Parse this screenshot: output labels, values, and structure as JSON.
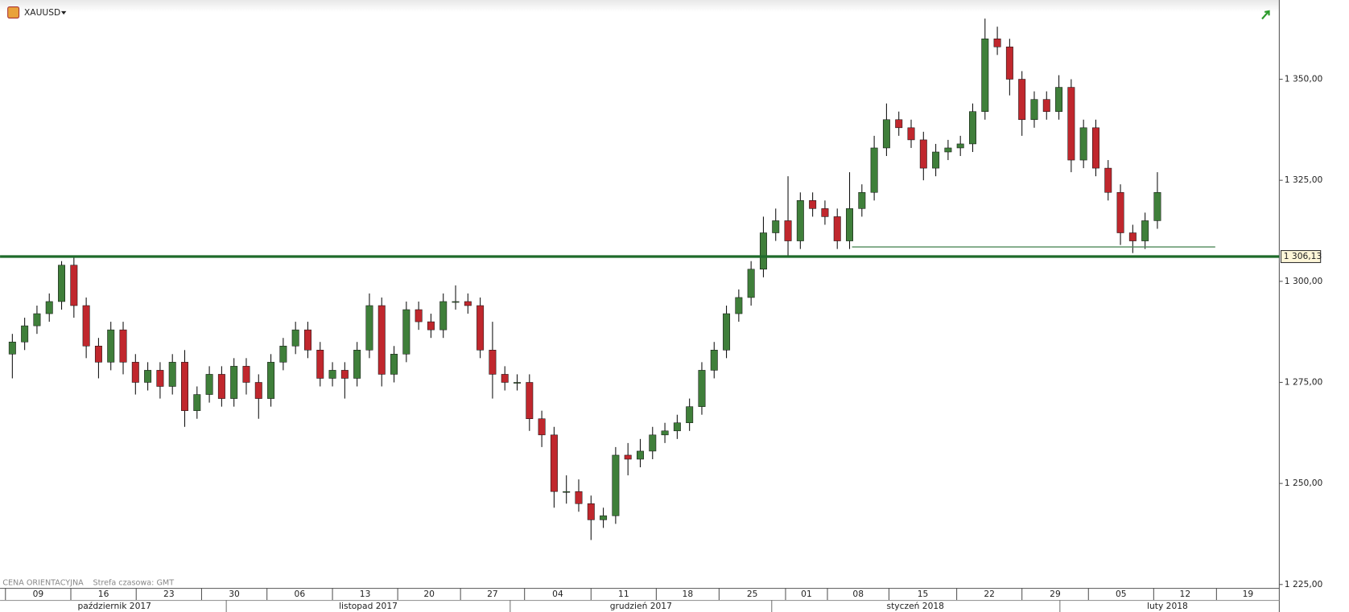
{
  "chart_data": {
    "type": "candlestick",
    "symbol": "XAUUSD",
    "footer_left": "CENA ORIENTACYJNA",
    "footer_right": "Strefa czasowa: GMT",
    "up_color": "#3f7f3a",
    "down_color": "#c0272d",
    "wick_color": "#111111",
    "x": [
      0,
      1,
      2,
      3,
      4,
      5,
      6,
      7,
      8,
      9,
      10,
      11,
      12,
      13,
      14,
      15,
      16,
      17,
      18,
      19,
      20,
      21,
      22,
      23,
      24,
      25,
      26,
      27,
      28,
      29,
      30,
      31,
      32,
      33,
      34,
      35,
      36,
      37,
      38,
      39,
      40,
      41,
      42,
      43,
      44,
      45,
      46,
      47,
      48,
      49,
      50,
      51,
      52,
      53,
      54,
      55,
      56,
      57,
      58,
      59,
      60,
      61,
      62,
      63,
      64,
      65,
      66,
      67,
      68,
      69,
      70,
      71,
      72,
      73,
      74,
      75,
      76,
      77,
      78,
      79,
      80,
      81,
      82,
      83,
      84,
      85,
      86,
      87,
      88,
      89,
      90,
      91,
      92,
      93
    ],
    "open": [
      1282,
      1285,
      1289,
      1292,
      1295,
      1304,
      1294,
      1284,
      1280,
      1288,
      1280,
      1275,
      1278,
      1274,
      1280,
      1268,
      1272,
      1277,
      1271,
      1279,
      1275,
      1271,
      1280,
      1284,
      1288,
      1283,
      1276,
      1278,
      1276,
      1283,
      1294,
      1277,
      1282,
      1293,
      1290,
      1288,
      1295,
      1295,
      1294,
      1283,
      1277,
      1275,
      1275,
      1266,
      1262,
      1248,
      1248,
      1245,
      1241,
      1242,
      1257,
      1256,
      1258,
      1262,
      1263,
      1265,
      1269,
      1278,
      1283,
      1292,
      1296,
      1303,
      1312,
      1315,
      1310,
      1320,
      1318,
      1316,
      1310,
      1318,
      1322,
      1333,
      1340,
      1338,
      1335,
      1328,
      1332,
      1333,
      1334,
      1342,
      1360,
      1358,
      1350,
      1340,
      1345,
      1342,
      1348,
      1330,
      1338,
      1328,
      1322,
      1312,
      1310,
      1315
    ],
    "high": [
      1287,
      1291,
      1294,
      1297,
      1305,
      1306,
      1296,
      1286,
      1290,
      1290,
      1282,
      1280,
      1280,
      1282,
      1283,
      1274,
      1279,
      1279,
      1281,
      1281,
      1277,
      1282,
      1286,
      1290,
      1290,
      1285,
      1280,
      1280,
      1285,
      1297,
      1296,
      1284,
      1295,
      1295,
      1292,
      1297,
      1299,
      1297,
      1296,
      1290,
      1279,
      1277,
      1277,
      1268,
      1264,
      1252,
      1251,
      1247,
      1244,
      1259,
      1260,
      1261,
      1264,
      1265,
      1267,
      1271,
      1280,
      1285,
      1294,
      1298,
      1305,
      1316,
      1318,
      1326,
      1322,
      1322,
      1320,
      1318,
      1327,
      1324,
      1336,
      1344,
      1342,
      1340,
      1337,
      1334,
      1335,
      1336,
      1344,
      1365,
      1363,
      1360,
      1352,
      1347,
      1347,
      1351,
      1350,
      1340,
      1340,
      1330,
      1324,
      1314,
      1317,
      1327
    ],
    "low": [
      1276,
      1283,
      1287,
      1290,
      1293,
      1291,
      1281,
      1276,
      1278,
      1277,
      1272,
      1273,
      1271,
      1272,
      1264,
      1266,
      1270,
      1269,
      1269,
      1272,
      1266,
      1269,
      1278,
      1282,
      1281,
      1274,
      1274,
      1271,
      1274,
      1281,
      1274,
      1275,
      1280,
      1288,
      1286,
      1286,
      1293,
      1292,
      1281,
      1271,
      1273,
      1273,
      1263,
      1259,
      1244,
      1245,
      1243,
      1236,
      1239,
      1240,
      1252,
      1254,
      1256,
      1260,
      1261,
      1263,
      1267,
      1276,
      1281,
      1290,
      1294,
      1301,
      1310,
      1306,
      1308,
      1316,
      1314,
      1308,
      1308,
      1316,
      1320,
      1331,
      1336,
      1333,
      1325,
      1326,
      1330,
      1331,
      1332,
      1340,
      1356,
      1346,
      1336,
      1338,
      1340,
      1340,
      1327,
      1328,
      1326,
      1320,
      1309,
      1307,
      1308,
      1313
    ],
    "close": [
      1285,
      1289,
      1292,
      1295,
      1304,
      1294,
      1284,
      1280,
      1288,
      1280,
      1275,
      1278,
      1274,
      1280,
      1268,
      1272,
      1277,
      1271,
      1279,
      1275,
      1271,
      1280,
      1284,
      1288,
      1283,
      1276,
      1278,
      1276,
      1283,
      1294,
      1277,
      1282,
      1293,
      1290,
      1288,
      1295,
      1295,
      1294,
      1283,
      1277,
      1275,
      1275,
      1266,
      1262,
      1248,
      1248,
      1245,
      1241,
      1242,
      1257,
      1256,
      1258,
      1262,
      1263,
      1265,
      1269,
      1278,
      1283,
      1292,
      1296,
      1303,
      1312,
      1315,
      1310,
      1320,
      1318,
      1316,
      1310,
      1318,
      1322,
      1333,
      1340,
      1338,
      1335,
      1328,
      1332,
      1333,
      1334,
      1342,
      1360,
      1358,
      1350,
      1340,
      1345,
      1342,
      1348,
      1330,
      1338,
      1328,
      1322,
      1312,
      1310,
      1315,
      1322
    ],
    "xlim": [
      -1,
      102.9
    ],
    "xticks": [
      {
        "value": -0.56,
        "label": "09"
      },
      {
        "value": 4.75,
        "label": "16"
      },
      {
        "value": 10.06,
        "label": "23"
      },
      {
        "value": 15.37,
        "label": "30"
      },
      {
        "value": 20.68,
        "label": "06"
      },
      {
        "value": 26,
        "label": "13"
      },
      {
        "value": 31.3,
        "label": "20"
      },
      {
        "value": 36.4,
        "label": "27"
      },
      {
        "value": 41.6,
        "label": "04"
      },
      {
        "value": 47,
        "label": "11"
      },
      {
        "value": 52.3,
        "label": "18"
      },
      {
        "value": 57.4,
        "label": "25"
      },
      {
        "value": 62.8,
        "label": "01"
      },
      {
        "value": 66.2,
        "label": "08"
      },
      {
        "value": 71.2,
        "label": "15"
      },
      {
        "value": 76.7,
        "label": "22"
      },
      {
        "value": 82,
        "label": "29"
      },
      {
        "value": 87.4,
        "label": "05"
      },
      {
        "value": 92.7,
        "label": "12"
      },
      {
        "value": 97.8,
        "label": "19"
      }
    ],
    "months": [
      "październik 2017",
      "listopad 2017",
      "grudzień 2017",
      "styczeń 2018",
      "luty 2018"
    ],
    "ylim": [
      1224.15,
      1369.6
    ],
    "yticks": [
      {
        "value": 1225,
        "label": "1 225,00"
      },
      {
        "value": 1250,
        "label": "1 250,00"
      },
      {
        "value": 1275,
        "label": "1 275,00"
      },
      {
        "value": 1300,
        "label": "1 300,00"
      },
      {
        "value": 1325,
        "label": "1 325,00"
      },
      {
        "value": 1350,
        "label": "1 350,00"
      }
    ],
    "levels": [
      {
        "value": 1306.13,
        "label": "1 306,13",
        "color": "#1e6b2a"
      },
      {
        "value": 1308.5,
        "x": [
          68.2,
          97.7
        ],
        "color": "#4f8a5a"
      }
    ]
  }
}
